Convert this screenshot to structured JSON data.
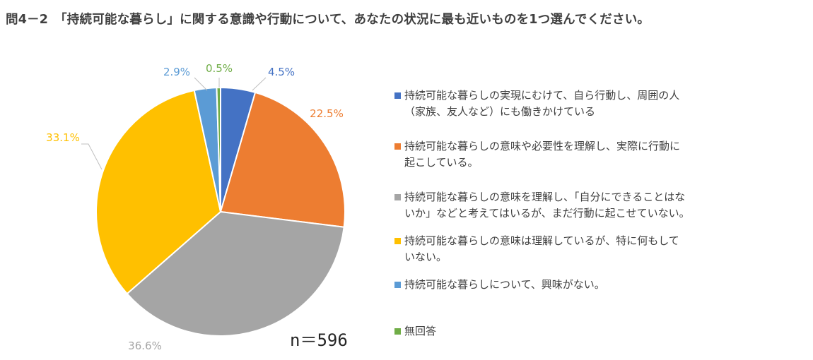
{
  "title": "問4－2　「持続可能な暮らし」に関する意識や行動について、あなたの状況に最も近いものを1つ選んでください。",
  "sample_size": "n＝596",
  "chart_data": {
    "type": "pie",
    "start_angle_deg": 0,
    "direction": "clockwise",
    "slices": [
      {
        "label": "持続可能な暮らしの実現にむけて、自ら行動し、周囲の人\n（家族、友人など）にも働きかけている",
        "value": 4.5,
        "display": "4.5%",
        "color": "#4472C4"
      },
      {
        "label": "持続可能な暮らしの意味や必要性を理解し、実際に行動に\n起こしている。",
        "value": 22.5,
        "display": "22.5%",
        "color": "#ED7D31"
      },
      {
        "label": "持続可能な暮らしの意味を理解し、「自分にできることはな\nいか」などと考えてはいるが、まだ行動に起こせていない。",
        "value": 36.6,
        "display": "36.6%",
        "color": "#A5A5A5"
      },
      {
        "label": "持続可能な暮らしの意味は理解しているが、特に何もして\nいない。",
        "value": 33.1,
        "display": "33.1%",
        "color": "#FFC000"
      },
      {
        "label": "持続可能な暮らしについて、興味がない。",
        "value": 2.9,
        "display": "2.9%",
        "color": "#5B9BD5"
      },
      {
        "label": "無回答",
        "value": 0.5,
        "display": "0.5%",
        "color": "#70AD47"
      }
    ]
  }
}
